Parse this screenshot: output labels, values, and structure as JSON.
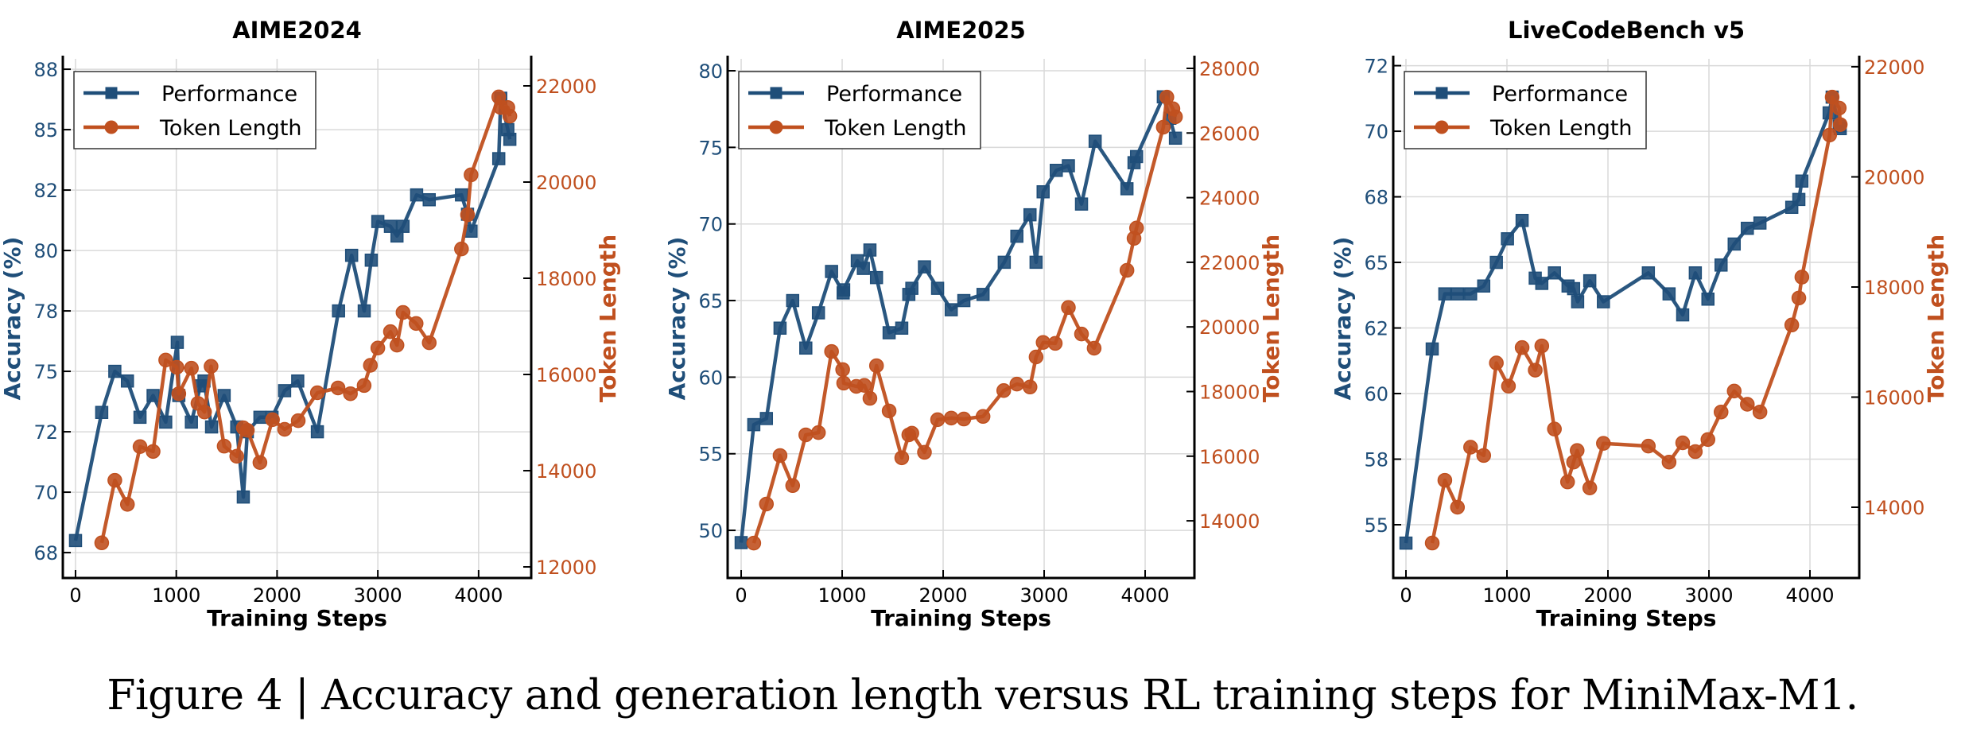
{
  "caption": "Figure 4 | Accuracy and generation length versus RL training steps for MiniMax-M1.",
  "colors": {
    "performance": "#1f4e79",
    "token_length": "#c0501f",
    "grid": "#d9d9d9"
  },
  "legend": {
    "performance_label": "Performance",
    "token_length_label": "Token Length",
    "placement": "top-left"
  },
  "chart_data": [
    {
      "type": "line",
      "title": "AIME2024",
      "xlabel": "Training Steps",
      "ylabel": "Accuracy (%)",
      "y2label": "Token Length",
      "xlim": [
        -126,
        4522
      ],
      "ylim": [
        66.45,
        87.93
      ],
      "y2lim": [
        11769,
        22562
      ],
      "xticks": [
        0,
        1000,
        2000,
        3000,
        4000
      ],
      "xtick_labels": [
        "0",
        "1000",
        "2000",
        "3000",
        "4000"
      ],
      "yticks": [
        67.5,
        70,
        72.5,
        75,
        77.5,
        80,
        82.5,
        85,
        87.5
      ],
      "ytick_labels": [
        "68",
        "70",
        "72",
        "75",
        "78",
        "80",
        "82",
        "85",
        "88"
      ],
      "y2ticks": [
        12000,
        14000,
        16000,
        18000,
        20000,
        22000
      ],
      "y2tick_labels": [
        "12000",
        "14000",
        "16000",
        "18000",
        "20000",
        "22000"
      ],
      "grid": true,
      "legend": "top-left",
      "series": [
        {
          "name": "Performance",
          "axis": "left",
          "marker": "square",
          "x": [
            0,
            260,
            390,
            515,
            640,
            770,
            895,
            1010,
            1025,
            1150,
            1240,
            1275,
            1350,
            1475,
            1600,
            1665,
            1705,
            1830,
            1950,
            2075,
            2205,
            2400,
            2610,
            2740,
            2865,
            2935,
            3000,
            3125,
            3190,
            3250,
            3385,
            3510,
            3830,
            3890,
            3925,
            4200,
            4220,
            4290,
            4310
          ],
          "y": [
            68.0,
            73.3,
            75.0,
            74.6,
            73.1,
            74.0,
            72.9,
            76.2,
            74.0,
            72.9,
            74.4,
            74.6,
            72.7,
            74.0,
            72.7,
            69.8,
            72.5,
            73.1,
            73.1,
            74.2,
            74.6,
            72.5,
            77.5,
            79.8,
            77.5,
            79.6,
            81.2,
            81.0,
            80.6,
            81.0,
            82.3,
            82.1,
            82.3,
            81.5,
            80.8,
            83.8,
            86.3,
            85.0,
            84.6
          ]
        },
        {
          "name": "Token Length",
          "axis": "right",
          "marker": "circle",
          "x": [
            260,
            390,
            515,
            640,
            770,
            895,
            1005,
            1025,
            1150,
            1215,
            1280,
            1345,
            1475,
            1600,
            1665,
            1705,
            1830,
            1955,
            2075,
            2210,
            2400,
            2605,
            2728,
            2864,
            2926,
            3000,
            3125,
            3190,
            3250,
            3380,
            3510,
            3830,
            3890,
            3925,
            4200,
            4220,
            4290,
            4310
          ],
          "y": [
            12500,
            13800,
            13300,
            14500,
            14400,
            16300,
            16150,
            15600,
            16130,
            15400,
            15220,
            16170,
            14510,
            14300,
            14890,
            14840,
            14170,
            15060,
            14860,
            15040,
            15620,
            15720,
            15600,
            15770,
            16190,
            16550,
            16890,
            16610,
            17290,
            17060,
            16660,
            18610,
            19320,
            20150,
            21770,
            21550,
            21550,
            21370
          ]
        }
      ]
    },
    {
      "type": "line",
      "title": "AIME2025",
      "xlabel": "Training Steps",
      "ylabel": "Accuracy (%)",
      "y2label": "Token Length",
      "xlim": [
        -134,
        4488
      ],
      "ylim": [
        46.89,
        80.78
      ],
      "y2lim": [
        12231,
        28295
      ],
      "xticks": [
        0,
        1000,
        2000,
        3000,
        4000
      ],
      "xtick_labels": [
        "0",
        "1000",
        "2000",
        "3000",
        "4000"
      ],
      "yticks": [
        50,
        55,
        60,
        65,
        70,
        75,
        80
      ],
      "ytick_labels": [
        "50",
        "55",
        "60",
        "65",
        "70",
        "75",
        "80"
      ],
      "y2ticks": [
        14000,
        16000,
        18000,
        20000,
        22000,
        24000,
        26000,
        28000
      ],
      "y2tick_labels": [
        "14000",
        "16000",
        "18000",
        "20000",
        "22000",
        "24000",
        "26000",
        "28000"
      ],
      "grid": true,
      "legend": "top-left",
      "series": [
        {
          "name": "Performance",
          "axis": "left",
          "marker": "square",
          "x": [
            0,
            125,
            250,
            385,
            510,
            640,
            765,
            895,
            1010,
            1015,
            1150,
            1210,
            1275,
            1340,
            1465,
            1590,
            1660,
            1690,
            1815,
            1945,
            2080,
            2205,
            2395,
            2605,
            2730,
            2860,
            2920,
            2990,
            3120,
            3240,
            3370,
            3505,
            3820,
            3890,
            3915,
            4180,
            4245,
            4300
          ],
          "y": [
            49.2,
            56.9,
            57.3,
            63.2,
            65.0,
            61.9,
            64.2,
            66.9,
            65.5,
            65.7,
            67.6,
            67.1,
            68.3,
            66.5,
            62.9,
            63.2,
            65.4,
            65.8,
            67.2,
            65.8,
            64.4,
            65.0,
            65.4,
            67.5,
            69.2,
            70.6,
            67.5,
            72.1,
            73.5,
            73.8,
            71.3,
            75.4,
            72.3,
            74.0,
            74.4,
            78.3,
            76.9,
            75.6
          ]
        },
        {
          "name": "Token Length",
          "axis": "right",
          "marker": "circle",
          "x": [
            125,
            250,
            385,
            510,
            640,
            765,
            895,
            1005,
            1015,
            1140,
            1220,
            1275,
            1340,
            1465,
            1590,
            1660,
            1690,
            1815,
            1945,
            2080,
            2205,
            2395,
            2600,
            2730,
            2860,
            2920,
            2990,
            3110,
            3240,
            3370,
            3495,
            3820,
            3890,
            3915,
            4180,
            4215,
            4275,
            4300
          ],
          "y": [
            13310,
            14520,
            16020,
            15090,
            16660,
            16730,
            19240,
            18680,
            18260,
            18160,
            18190,
            17790,
            18800,
            17400,
            15950,
            16660,
            16710,
            16120,
            17130,
            17180,
            17150,
            17230,
            18030,
            18230,
            18140,
            19070,
            19520,
            19490,
            20600,
            19780,
            19340,
            21750,
            22740,
            23060,
            26180,
            27110,
            26750,
            26500
          ]
        }
      ]
    },
    {
      "type": "line",
      "title": "LiveCodeBench v5",
      "xlabel": "Training Steps",
      "ylabel": "Accuracy (%)",
      "y2label": "Token Length",
      "xlim": [
        -126,
        4488
      ],
      "ylim": [
        52.97,
        72.76
      ],
      "y2lim": [
        12715,
        22144
      ],
      "xticks": [
        0,
        1000,
        2000,
        3000,
        4000
      ],
      "xtick_labels": [
        "0",
        "1000",
        "2000",
        "3000",
        "4000"
      ],
      "yticks": [
        55,
        57.5,
        60,
        62.5,
        65,
        67.5,
        70,
        72.5
      ],
      "ytick_labels": [
        "55",
        "58",
        "60",
        "62",
        "65",
        "68",
        "70",
        "72"
      ],
      "y2ticks": [
        14000,
        16000,
        18000,
        20000,
        22000
      ],
      "y2tick_labels": [
        "14000",
        "16000",
        "18000",
        "20000",
        "22000"
      ],
      "grid": true,
      "legend": "top-left",
      "series": [
        {
          "name": "Performance",
          "axis": "left",
          "marker": "square",
          "x": [
            0,
            260,
            385,
            510,
            640,
            770,
            895,
            1005,
            1150,
            1280,
            1345,
            1470,
            1605,
            1660,
            1700,
            1820,
            1955,
            2400,
            2605,
            2740,
            2865,
            2990,
            3120,
            3250,
            3380,
            3505,
            3820,
            3890,
            3920,
            4190,
            4220,
            4290,
            4300
          ],
          "y": [
            54.3,
            61.7,
            63.8,
            63.8,
            63.8,
            64.1,
            65.0,
            65.9,
            66.6,
            64.4,
            64.2,
            64.6,
            64.1,
            64.0,
            63.5,
            64.3,
            63.5,
            64.6,
            63.8,
            63.0,
            64.6,
            63.6,
            64.9,
            65.7,
            66.3,
            66.5,
            67.1,
            67.4,
            68.1,
            70.7,
            71.3,
            70.2,
            70.1
          ]
        },
        {
          "name": "Token Length",
          "axis": "right",
          "marker": "circle",
          "x": [
            260,
            385,
            510,
            640,
            770,
            895,
            1015,
            1150,
            1280,
            1345,
            1470,
            1600,
            1660,
            1695,
            1820,
            1955,
            2400,
            2605,
            2740,
            2865,
            2990,
            3120,
            3250,
            3380,
            3505,
            3820,
            3890,
            3920,
            4195,
            4220,
            4290,
            4300
          ],
          "y": [
            13350,
            14490,
            14000,
            15090,
            14940,
            16620,
            16200,
            16900,
            16490,
            16930,
            15420,
            14460,
            14820,
            15030,
            14350,
            15160,
            15110,
            14820,
            15170,
            15010,
            15230,
            15730,
            16110,
            15870,
            15730,
            17310,
            17800,
            18180,
            20760,
            21450,
            21250,
            20950
          ]
        }
      ]
    }
  ]
}
